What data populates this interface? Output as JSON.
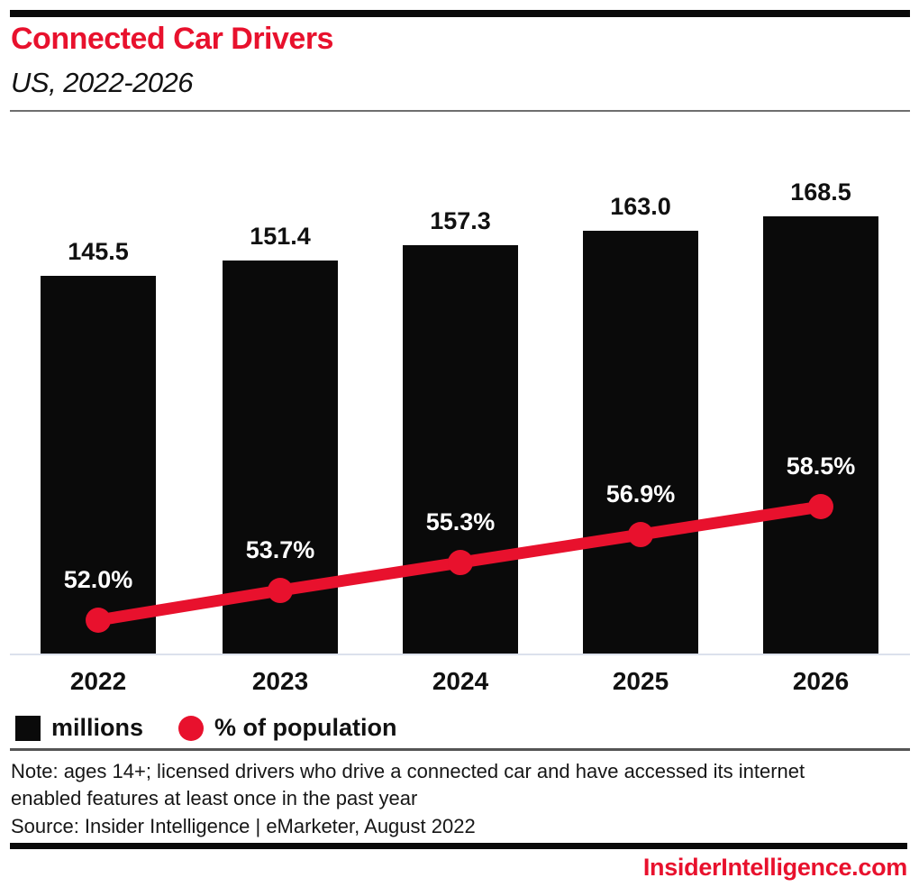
{
  "header": {
    "title": "Connected Car Drivers",
    "subtitle": "US, 2022-2026"
  },
  "colors": {
    "accent_red": "#e8112d",
    "bar_black": "#0a0a0a",
    "axis_line_gray": "#dce1ec",
    "divider_gray": "#6f6f6f",
    "value_label_white": "#ffffff"
  },
  "legend": {
    "items": [
      {
        "swatch": "black-square",
        "label": "millions"
      },
      {
        "swatch": "red-circle",
        "label": "% of population"
      }
    ]
  },
  "chart_data": {
    "type": "bar",
    "subtype": "bar-line-combo",
    "title": "Connected Car Drivers",
    "subtitle": "US, 2022-2026",
    "categories": [
      "2022",
      "2023",
      "2024",
      "2025",
      "2026"
    ],
    "series": [
      {
        "name": "millions",
        "type": "bar",
        "color": "#0a0a0a",
        "values": [
          145.5,
          151.4,
          157.3,
          163.0,
          168.5
        ]
      },
      {
        "name": "% of population",
        "type": "line",
        "color": "#e8112d",
        "values": [
          52.0,
          53.7,
          55.3,
          56.9,
          58.5
        ]
      }
    ],
    "xlabel": "",
    "ylabel": "",
    "bar_axis_range": [
      0,
      190
    ],
    "line_axis_range": [
      50,
      62
    ],
    "grid": false,
    "legend_position": "bottom-left",
    "data_labels": true
  },
  "footnotes": {
    "note": "Note: ages 14+; licensed drivers who drive a connected car and have accessed its internet enabled features at least once in the past year",
    "source": "Source: Insider Intelligence | eMarketer, August 2022"
  },
  "footer": {
    "brand": "InsiderIntelligence.com"
  }
}
